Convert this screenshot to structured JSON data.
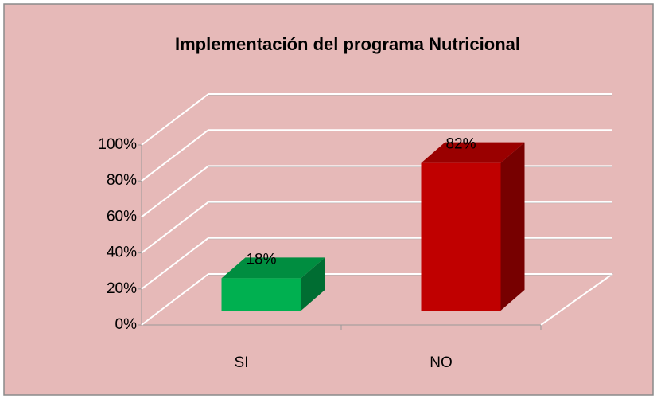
{
  "chart_data": {
    "type": "bar3d",
    "title": "Implementación del programa Nutricional",
    "categories": [
      "SI",
      "NO"
    ],
    "values": [
      18,
      82
    ],
    "value_labels": [
      "18%",
      "82%"
    ],
    "colors": [
      "#00b050",
      "#c00000"
    ],
    "ylim": [
      0,
      100
    ],
    "yticks": [
      {
        "value": 0,
        "label": "0%"
      },
      {
        "value": 20,
        "label": "20%"
      },
      {
        "value": 40,
        "label": "40%"
      },
      {
        "value": 60,
        "label": "60%"
      },
      {
        "value": 80,
        "label": "80%"
      },
      {
        "value": 100,
        "label": "100%"
      }
    ],
    "grid": true
  }
}
